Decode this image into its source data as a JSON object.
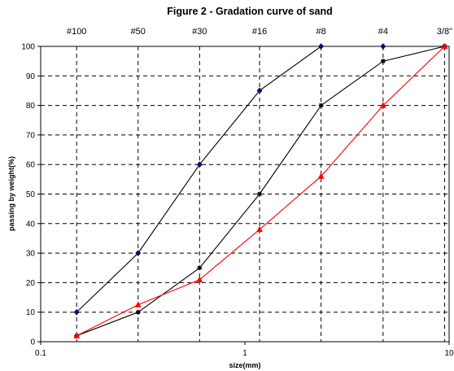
{
  "chart_data": {
    "type": "line",
    "title": "Figure 2 - Gradation curve of sand",
    "xlabel": "size(mm)",
    "ylabel": "passing by weight(%)",
    "x_scale": "log",
    "xlim": [
      0.1,
      10
    ],
    "ylim": [
      0,
      100
    ],
    "x_tick_labels": [
      "0.1",
      "1",
      "10"
    ],
    "y_ticks": [
      0,
      10,
      20,
      30,
      40,
      50,
      60,
      70,
      80,
      90,
      100
    ],
    "grid": "dashed vertical at sieve sizes, dashed horizontal every 10",
    "sieves": [
      {
        "label": "#100",
        "size": 0.15
      },
      {
        "label": "#50",
        "size": 0.3
      },
      {
        "label": "#30",
        "size": 0.6
      },
      {
        "label": "#16",
        "size": 1.18
      },
      {
        "label": "#8",
        "size": 2.36
      },
      {
        "label": "#4",
        "size": 4.75
      },
      {
        "label": "3/8\"",
        "size": 9.5
      }
    ],
    "x": [
      0.15,
      0.3,
      0.6,
      1.18,
      2.36,
      4.75,
      9.5
    ],
    "series": [
      {
        "values": [
          10,
          30,
          60,
          85,
          100,
          100,
          100
        ],
        "color": "#000000",
        "marker": "diamond-navy"
      },
      {
        "values": [
          2,
          10,
          25,
          50,
          80,
          95,
          100
        ],
        "color": "#000000",
        "marker": "star-black"
      },
      {
        "values": [
          2,
          12.5,
          21,
          38,
          56,
          80,
          100
        ],
        "color": "#ff0000",
        "marker": "triangle-red"
      }
    ]
  }
}
